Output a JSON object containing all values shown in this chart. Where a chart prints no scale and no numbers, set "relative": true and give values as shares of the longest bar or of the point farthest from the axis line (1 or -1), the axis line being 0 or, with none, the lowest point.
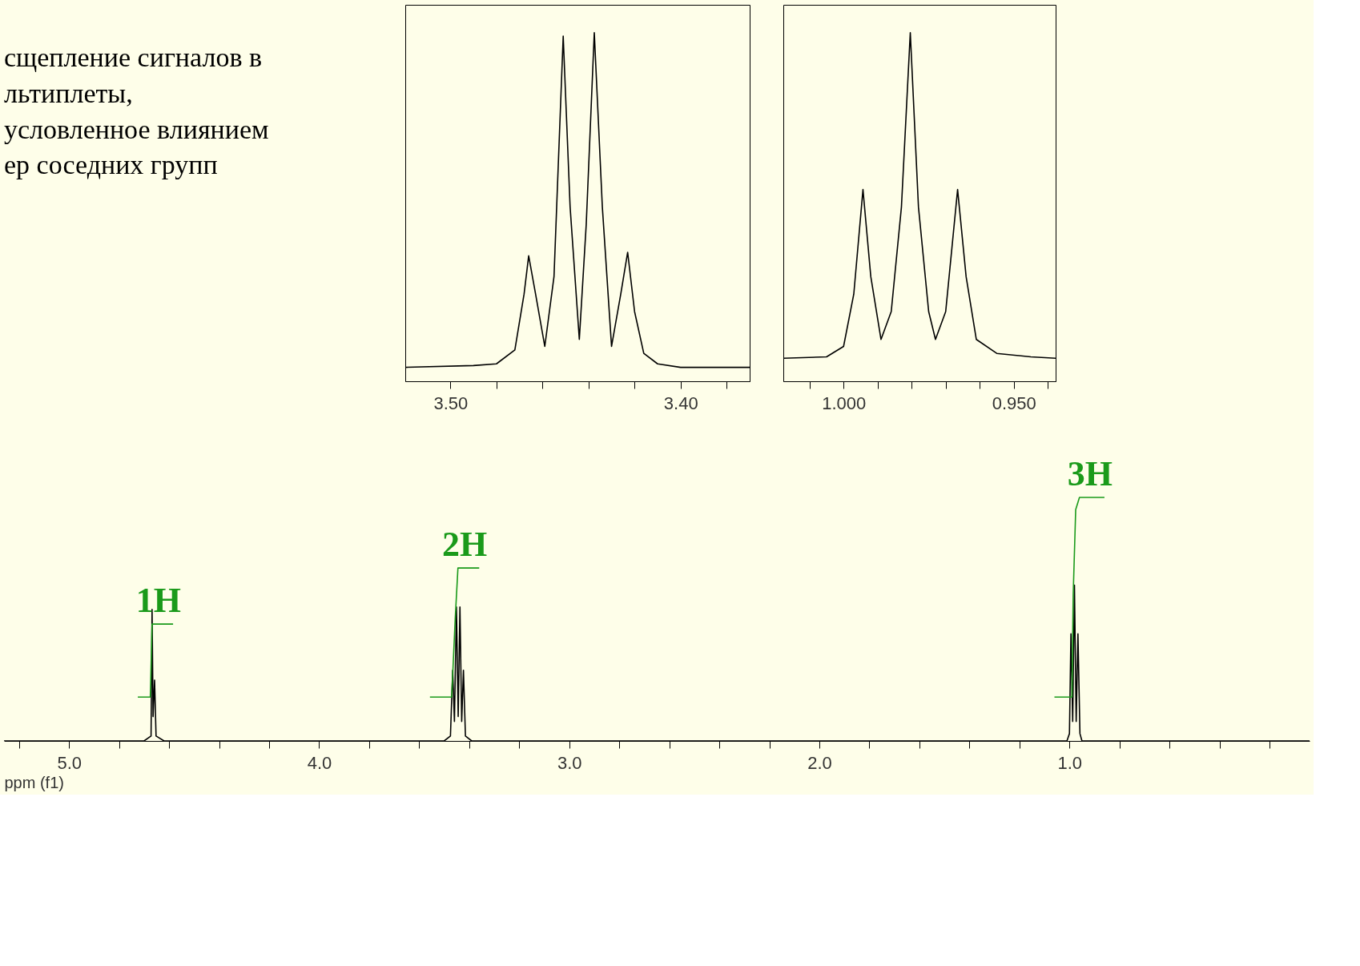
{
  "chart_data": [
    {
      "type": "line",
      "relative": true,
      "xlim": [
        3.5196,
        3.37
      ],
      "xticks": [
        {
          "value": 3.5,
          "label": "3.50"
        },
        {
          "value": 3.48,
          "label": null
        },
        {
          "value": 3.46,
          "label": null
        },
        {
          "value": 3.44,
          "label": null
        },
        {
          "value": 3.42,
          "label": null
        },
        {
          "value": 3.4,
          "label": "3.40"
        },
        {
          "value": 3.38,
          "label": null
        }
      ],
      "series": [
        {
          "color": "#000000",
          "x": [
            3.5196,
            3.49,
            3.48,
            3.472,
            3.468,
            3.466,
            3.463,
            3.459,
            3.455,
            3.451,
            3.448,
            3.444,
            3.441,
            3.4375,
            3.434,
            3.43,
            3.426,
            3.423,
            3.42,
            3.416,
            3.41,
            3.4,
            3.37
          ],
          "values": [
            0.04,
            0.045,
            0.05,
            0.09,
            0.25,
            0.36,
            0.25,
            0.1,
            0.3,
            0.99,
            0.5,
            0.12,
            0.45,
            1.0,
            0.5,
            0.1,
            0.25,
            0.37,
            0.2,
            0.08,
            0.05,
            0.04,
            0.04
          ]
        }
      ]
    },
    {
      "type": "line",
      "relative": true,
      "xlim": [
        1.0177,
        0.9377
      ],
      "xticks": [
        {
          "value": 1.01,
          "label": null
        },
        {
          "value": 1.0,
          "label": "1.000"
        },
        {
          "value": 0.99,
          "label": null
        },
        {
          "value": 0.98,
          "label": null
        },
        {
          "value": 0.97,
          "label": null
        },
        {
          "value": 0.96,
          "label": null
        },
        {
          "value": 0.95,
          "label": "0.950"
        },
        {
          "value": 0.94,
          "label": null
        }
      ],
      "series": [
        {
          "color": "#000000",
          "x": [
            1.0177,
            1.005,
            1.0,
            0.997,
            0.9943,
            0.992,
            0.989,
            0.986,
            0.983,
            0.9804,
            0.978,
            0.975,
            0.973,
            0.97,
            0.9665,
            0.964,
            0.961,
            0.955,
            0.945,
            0.9377
          ],
          "values": [
            0.066,
            0.07,
            0.1,
            0.25,
            0.55,
            0.3,
            0.12,
            0.2,
            0.5,
            1.0,
            0.5,
            0.2,
            0.12,
            0.2,
            0.55,
            0.3,
            0.12,
            0.08,
            0.07,
            0.066
          ]
        }
      ]
    },
    {
      "type": "line",
      "relative": true,
      "xlabel": "ppm (f1)",
      "xlim": [
        5.26,
        0.04
      ],
      "xticks": [
        {
          "value": 5.2,
          "label": null
        },
        {
          "value": 5.0,
          "label": "5.0"
        },
        {
          "value": 4.8,
          "label": null
        },
        {
          "value": 4.6,
          "label": null
        },
        {
          "value": 4.4,
          "label": null
        },
        {
          "value": 4.2,
          "label": null
        },
        {
          "value": 4.0,
          "label": "4.0"
        },
        {
          "value": 3.8,
          "label": null
        },
        {
          "value": 3.6,
          "label": null
        },
        {
          "value": 3.4,
          "label": null
        },
        {
          "value": 3.2,
          "label": null
        },
        {
          "value": 3.0,
          "label": "3.0"
        },
        {
          "value": 2.8,
          "label": null
        },
        {
          "value": 2.6,
          "label": null
        },
        {
          "value": 2.4,
          "label": null
        },
        {
          "value": 2.2,
          "label": null
        },
        {
          "value": 2.0,
          "label": "2.0"
        },
        {
          "value": 1.8,
          "label": null
        },
        {
          "value": 1.6,
          "label": null
        },
        {
          "value": 1.4,
          "label": null
        },
        {
          "value": 1.2,
          "label": null
        },
        {
          "value": 1.0,
          "label": "1.0"
        },
        {
          "value": 0.8,
          "label": null
        },
        {
          "value": 0.6,
          "label": null
        },
        {
          "value": 0.4,
          "label": null
        },
        {
          "value": 0.2,
          "label": null
        }
      ],
      "series": [
        {
          "color": "#000000",
          "x": [
            5.26,
            4.7,
            4.672,
            4.668,
            4.664,
            4.658,
            4.652,
            4.62,
            3.5,
            3.475,
            3.466,
            3.459,
            3.451,
            3.444,
            3.437,
            3.43,
            3.423,
            3.415,
            3.39,
            1.01,
            1.0,
            0.994,
            0.987,
            0.98,
            0.973,
            0.966,
            0.958,
            0.95,
            0.04
          ],
          "values": [
            0,
            0,
            0.02,
            0.54,
            0.1,
            0.25,
            0.02,
            0,
            0,
            0.02,
            0.29,
            0.08,
            0.55,
            0.1,
            0.55,
            0.08,
            0.29,
            0.02,
            0,
            0,
            0.03,
            0.44,
            0.08,
            0.64,
            0.08,
            0.44,
            0.03,
            0,
            0
          ]
        },
        {
          "color": "#1a9a1a",
          "x": [
            4.725,
            4.675,
            4.668,
            4.66,
            4.584
          ],
          "values": [
            0.18,
            0.18,
            0.48,
            0.48,
            0.48
          ]
        },
        {
          "color": "#1a9a1a",
          "x": [
            3.557,
            3.47,
            3.456,
            3.445,
            3.433,
            3.36
          ],
          "values": [
            0.18,
            0.18,
            0.5,
            0.71,
            0.71,
            0.71
          ]
        },
        {
          "color": "#1a9a1a",
          "x": [
            1.06,
            0.99,
            0.985,
            0.975,
            0.96,
            0.86
          ],
          "values": [
            0.18,
            0.18,
            0.6,
            0.95,
            1.0,
            1.0
          ]
        }
      ],
      "annotations": [
        "сщепление сигналов в",
        "льтиплеты,",
        "условленное влиянием",
        "ер соседних групп",
        {
          "text": "1H",
          "x": 4.584,
          "y": 0.48
        },
        {
          "text": "2H",
          "x": 3.36,
          "y": 0.71
        },
        {
          "text": "3H",
          "x": 0.86,
          "y": 1.0
        }
      ]
    }
  ]
}
